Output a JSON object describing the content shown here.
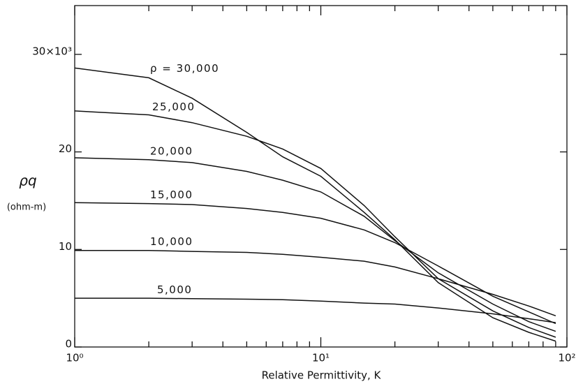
{
  "chart_data": {
    "type": "line",
    "xlabel": "Relative    Permittivity,  K",
    "ylabel": "ρq",
    "yunit": "(ohm-m)",
    "xscale": "log",
    "minor_ticks": true,
    "color": "#111111",
    "xlim": [
      1,
      100
    ],
    "ylim": [
      0,
      35
    ],
    "xticks": [
      {
        "value": 1,
        "label": "10⁰"
      },
      {
        "value": 10,
        "label": "10¹"
      },
      {
        "value": 100,
        "label": "10²"
      }
    ],
    "yticks": [
      0,
      10,
      20,
      {
        "value": 30,
        "label": "30×10³"
      }
    ],
    "x": [
      1,
      2,
      3,
      5,
      7,
      10,
      15,
      20,
      30,
      50,
      70,
      90
    ],
    "series": [
      {
        "name": "ρ = 30,000",
        "values": [
          28.6,
          27.6,
          25.5,
          22,
          19.5,
          17.5,
          13.8,
          11,
          6.6,
          3,
          1.5,
          0.6
        ]
      },
      {
        "name": "25,000",
        "values": [
          24.2,
          23.8,
          23,
          21.6,
          20.3,
          18.3,
          14.5,
          11.3,
          7,
          3.7,
          2,
          1
        ]
      },
      {
        "name": "20,000",
        "values": [
          19.4,
          19.2,
          18.9,
          18,
          17.1,
          15.9,
          13.4,
          10.9,
          7.6,
          4.4,
          2.6,
          1.6
        ]
      },
      {
        "name": "15,000",
        "values": [
          14.8,
          14.7,
          14.6,
          14.2,
          13.8,
          13.2,
          12,
          10.7,
          8.3,
          5.2,
          3.6,
          2.4
        ]
      },
      {
        "name": "10,000",
        "values": [
          9.9,
          9.9,
          9.8,
          9.7,
          9.5,
          9.2,
          8.8,
          8.2,
          7,
          5.4,
          4.2,
          3.2
        ]
      },
      {
        "name": "5,000",
        "values": [
          5,
          5,
          4.95,
          4.9,
          4.85,
          4.7,
          4.5,
          4.4,
          4,
          3.4,
          2.9,
          2.5
        ]
      }
    ]
  }
}
